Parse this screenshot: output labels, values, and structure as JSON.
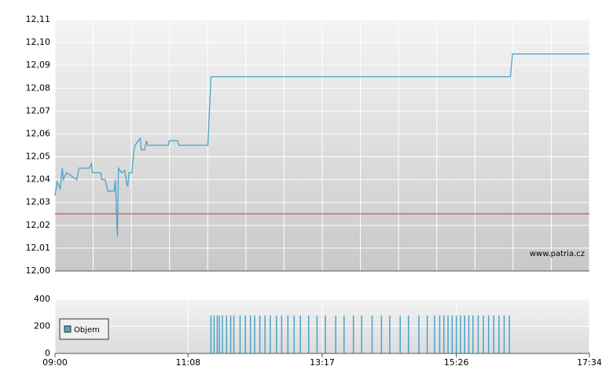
{
  "chart_data": [
    {
      "type": "line",
      "xlim": [
        "09:00",
        "17:34"
      ],
      "ylim": [
        12.0,
        12.11
      ],
      "yticks": [
        {
          "value": 12.0,
          "label": "12,00"
        },
        {
          "value": 12.01,
          "label": "12,01"
        },
        {
          "value": 12.02,
          "label": "12,02"
        },
        {
          "value": 12.03,
          "label": "12,03"
        },
        {
          "value": 12.04,
          "label": "12,04"
        },
        {
          "value": 12.05,
          "label": "12,05"
        },
        {
          "value": 12.06,
          "label": "12,06"
        },
        {
          "value": 12.07,
          "label": "12,07"
        },
        {
          "value": 12.08,
          "label": "12,08"
        },
        {
          "value": 12.09,
          "label": "12,09"
        },
        {
          "value": 12.1,
          "label": "12,10"
        },
        {
          "value": 12.11,
          "label": "12,11"
        }
      ],
      "grid": true,
      "color": "#4aa3c8",
      "hline": 12.025,
      "hline_color": "#cc3333",
      "annotation": "www.patria.cz",
      "x": [
        "09:00",
        "09:02",
        "09:05",
        "09:07",
        "09:08",
        "09:11",
        "09:21",
        "09:23",
        "09:33",
        "09:35",
        "09:36",
        "09:44",
        "09:45",
        "09:48",
        "09:51",
        "09:57",
        "09:58",
        "10:00",
        "10:01",
        "10:04",
        "10:07",
        "10:09",
        "10:10",
        "10:11",
        "10:14",
        "10:16",
        "10:17",
        "10:20",
        "10:22",
        "10:23",
        "10:26",
        "10:28",
        "10:29",
        "10:49",
        "10:50",
        "10:58",
        "10:59",
        "11:27",
        "11:30",
        "16:18",
        "16:20",
        "17:34"
      ],
      "values": [
        12.033,
        12.039,
        12.036,
        12.045,
        12.04,
        12.043,
        12.04,
        12.045,
        12.045,
        12.047,
        12.043,
        12.043,
        12.04,
        12.04,
        12.035,
        12.035,
        12.04,
        12.015,
        12.045,
        12.043,
        12.044,
        12.038,
        12.037,
        12.043,
        12.043,
        12.053,
        12.055,
        12.057,
        12.058,
        12.053,
        12.053,
        12.057,
        12.055,
        12.055,
        12.057,
        12.057,
        12.055,
        12.055,
        12.085,
        12.085,
        12.095,
        12.095
      ]
    },
    {
      "type": "bar",
      "xlim": [
        "09:00",
        "17:34"
      ],
      "xticks": [
        "09:00",
        "11:08",
        "13:17",
        "15:26",
        "17:34"
      ],
      "ylim": [
        0,
        400
      ],
      "yticks": [
        0,
        200,
        400
      ],
      "grid": true,
      "legend": "left",
      "x": [
        "11:30",
        "11:33",
        "11:36",
        "11:38",
        "11:41",
        "11:45",
        "11:49",
        "11:52",
        "11:58",
        "12:03",
        "12:08",
        "12:12",
        "12:17",
        "12:22",
        "12:27",
        "12:33",
        "12:38",
        "12:44",
        "12:50",
        "12:56",
        "13:04",
        "13:12",
        "13:20",
        "13:30",
        "13:38",
        "13:47",
        "13:55",
        "14:05",
        "14:14",
        "14:22",
        "14:32",
        "14:40",
        "14:50",
        "14:58",
        "15:05",
        "15:10",
        "15:14",
        "15:18",
        "15:22",
        "15:26",
        "15:30",
        "15:34",
        "15:38",
        "15:42",
        "15:47",
        "15:52",
        "15:57",
        "16:02",
        "16:07",
        "16:12",
        "16:17",
        "16:25",
        "16:40",
        "16:55",
        "17:10",
        "17:25",
        "17:34"
      ],
      "series": [
        {
          "name": "Objem",
          "color": "#4aa3c8",
          "values": [
            280,
            280,
            280,
            280,
            280,
            280,
            280,
            280,
            280,
            280,
            280,
            280,
            280,
            280,
            280,
            280,
            280,
            280,
            280,
            280,
            280,
            280,
            280,
            280,
            280,
            280,
            280,
            280,
            280,
            280,
            280,
            280,
            280,
            280,
            280,
            280,
            280,
            280,
            280,
            280,
            280,
            280,
            280,
            280,
            280,
            280,
            280,
            280,
            280,
            280,
            280,
            5,
            5,
            5,
            5,
            5,
            5
          ]
        }
      ]
    }
  ]
}
